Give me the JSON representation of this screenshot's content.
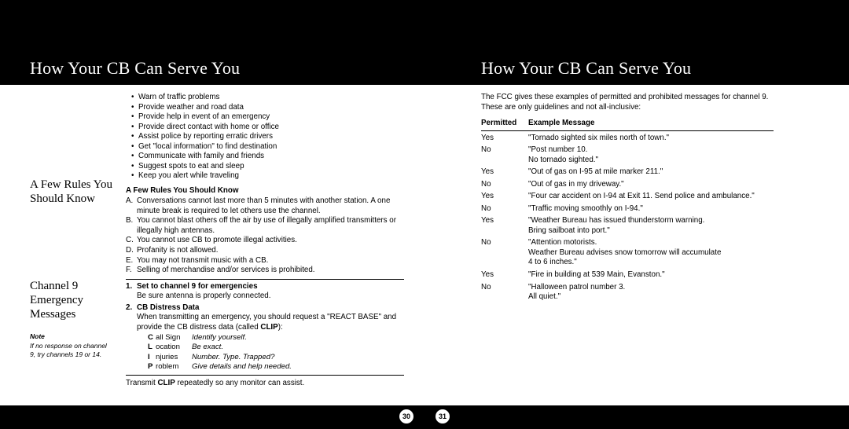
{
  "header": {
    "title_left": "How Your CB Can Serve You",
    "title_right": "How Your CB Can Serve You"
  },
  "left_page": {
    "sidebar": {
      "head_rules": "A Few Rules You Should Know",
      "head_channel": "Channel 9 Emergency Messages",
      "note_h": "Note",
      "note": "If no response on channel 9, try channels 19 or 14."
    },
    "bullets": [
      "Warn of traffic problems",
      "Provide weather and road data",
      "Provide help in event of an emergency",
      "Provide direct contact with home or office",
      "Assist police by reporting erratic drivers",
      "Get \"local information\" to find destination",
      "Communicate with family and friends",
      "Suggest spots to eat and sleep",
      "Keep you alert while traveling"
    ],
    "rules_h": "A Few Rules You Should Know",
    "alpha": [
      {
        "l": "A.",
        "t": "Conversations cannot last more than 5 minutes with another station.  A one minute break is required to let others use the channel."
      },
      {
        "l": "B.",
        "t": "You cannot blast others off the air by use of illegally amplified transmitters or illegally high  antennas."
      },
      {
        "l": "C.",
        "t": "You cannot use CB to promote illegal activities."
      },
      {
        "l": "D.",
        "t": "Profanity is not allowed."
      },
      {
        "l": "E.",
        "t": "You may not transmit music with a CB."
      },
      {
        "l": "F.",
        "t": "Selling of merchandise and/or services is prohibited."
      }
    ],
    "num1_h": "Set to channel 9 for emergencies",
    "num1_t": "Be sure antenna is properly connected.",
    "num2_h": "CB Distress Data",
    "num2_t_a": "When transmitting an emergency, you should request a \"REACT BASE\" and provide the CB distress data (called ",
    "num2_clip": "CLIP",
    "num2_t_b": "):",
    "clip": [
      {
        "c1": "C",
        "c2": "all Sign",
        "c3": "Identify yourself."
      },
      {
        "c1": "L",
        "c2": "ocation",
        "c3": "Be exact."
      },
      {
        "c1": "I",
        "c2": "njuries",
        "c3": "Number. Type. Trapped?"
      },
      {
        "c1": "P",
        "c2": "roblem",
        "c3": "Give details and help needed."
      }
    ],
    "footnote_a": "Transmit ",
    "footnote_b": "CLIP",
    "footnote_c": " repeatedly so any monitor can assist.",
    "page_num": "30"
  },
  "right_page": {
    "intro": "The FCC gives these examples of permitted and prohibited messages for channel 9. These are only guidelines and not all-inclusive:",
    "hdr_p": "Permitted",
    "hdr_m": "Example Message",
    "rows": [
      {
        "p": "Yes",
        "m": "\"Tornado sighted six miles north of town.\""
      },
      {
        "p": "No",
        "m": "\"Post number 10.\nNo tornado sighted.\""
      },
      {
        "p": "Yes",
        "m": "\"Out of gas on I-95 at mile marker 211.\""
      },
      {
        "p": "No",
        "m": "\"Out of gas in my driveway.\""
      },
      {
        "p": "Yes",
        "m": "\"Four car accident on I-94 at Exit 11. Send police and ambulance.\""
      },
      {
        "p": "No",
        "m": "\"Traffic moving smoothly on I-94.\""
      },
      {
        "p": "Yes",
        "m": "\"Weather Bureau has issued thunderstorm warning.\nBring sailboat into port.\""
      },
      {
        "p": "No",
        "m": "\"Attention motorists.\nWeather Bureau advises snow tomorrow will accumulate\n4 to 6 inches.\""
      },
      {
        "p": "Yes",
        "m": "\"Fire in building at 539 Main, Evanston.\""
      },
      {
        "p": "No",
        "m": "\"Halloween patrol number 3.\nAll quiet.\""
      }
    ],
    "page_num": "31"
  }
}
